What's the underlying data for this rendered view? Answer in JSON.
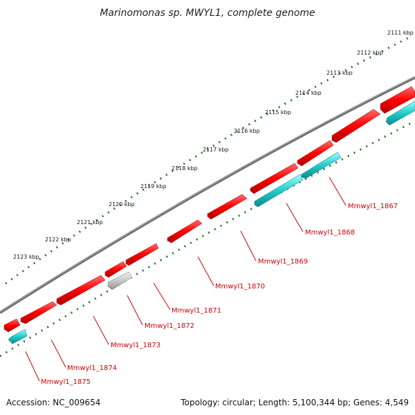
{
  "title": "Marinomonas sp. MWYL1, complete genome",
  "kbp_labels": [
    "2111 kbp",
    "2112 kbp",
    "2113 kbp",
    "2114 kbp",
    "2115 kbp",
    "2116 kbp",
    "2117 kbp",
    "2118 kbp",
    "2119 kbp",
    "2120 kbp",
    "2121 kbp",
    "2122 kbp",
    "2123 kbp"
  ],
  "gene_labels": [
    "Mmwyl1_1867",
    "Mmwyl1_1868",
    "Mmwyl1_1869",
    "Mmwyl1_1870",
    "Mmwyl1_1871",
    "Mmwyl1_1872",
    "Mmwyl1_1873",
    "Mmwyl1_1874",
    "Mmwyl1_1875"
  ],
  "footer": {
    "accession": "Accession: NC_009654",
    "topology": "Topology: circular; Length: 5,100,344 bp; Genes: 4,549"
  },
  "colors": {
    "backbone": "#7a7a7a",
    "tick_dots": "#2a7a2a",
    "forward_gene": "#ee0000",
    "reverse_gene": "#22bbbb",
    "other_feature": "#bbbbbb",
    "label": "#d40000"
  }
}
